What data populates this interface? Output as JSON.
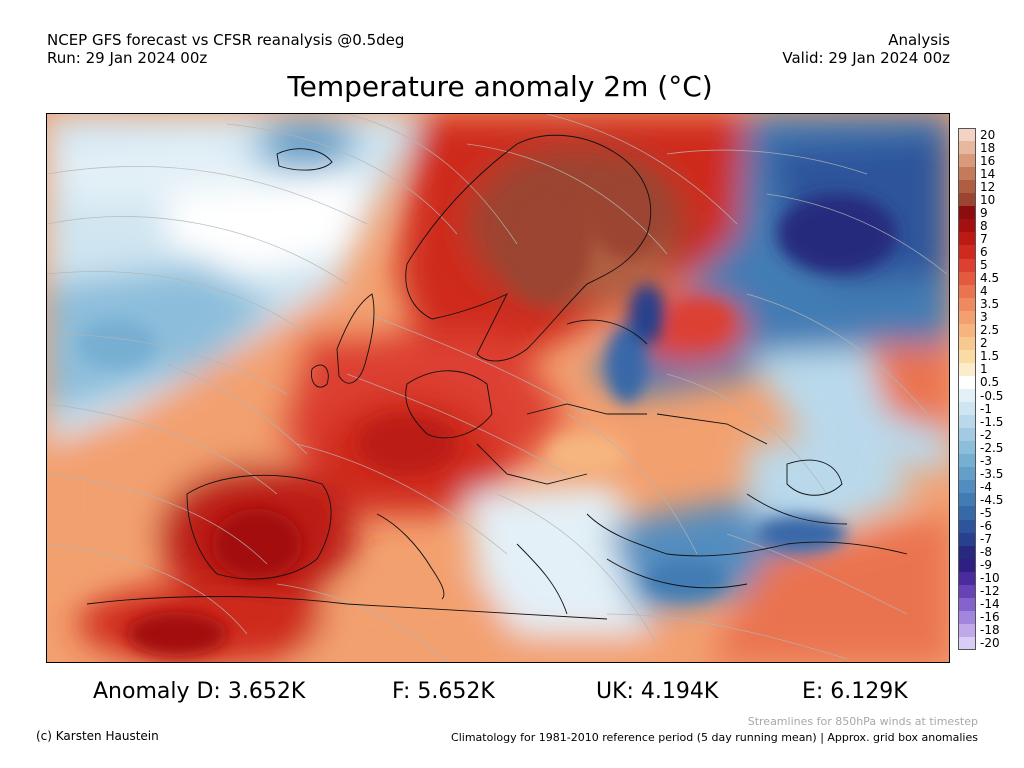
{
  "header": {
    "source_line": "NCEP GFS forecast vs CFSR reanalysis @0.5deg",
    "run_line": "Run: 29 Jan 2024 00z",
    "type_line": "Analysis",
    "valid_line": "Valid: 29 Jan 2024 00z"
  },
  "title": "Temperature anomaly 2m (°C)",
  "colorbar": {
    "labels": [
      "20",
      "18",
      "16",
      "14",
      "12",
      "10",
      "9",
      "8",
      "7",
      "6",
      "5",
      "4.5",
      "4",
      "3.5",
      "3",
      "2.5",
      "2",
      "1.5",
      "1",
      "0.5",
      "-0.5",
      "-1",
      "-1.5",
      "-2",
      "-2.5",
      "-3",
      "-3.5",
      "-4",
      "-4.5",
      "-5",
      "-6",
      "-7",
      "-8",
      "-9",
      "-10",
      "-12",
      "-14",
      "-16",
      "-18",
      "-20"
    ],
    "colors": [
      "#f3d3c4",
      "#e8b89e",
      "#d89a7b",
      "#c47b5c",
      "#b05e43",
      "#9b4430",
      "#8c0d0d",
      "#a3100f",
      "#bb1a15",
      "#cf2a1e",
      "#dd4030",
      "#e45a3e",
      "#ea7350",
      "#ef8a60",
      "#f3a06f",
      "#f6b57f",
      "#f8c98f",
      "#f9dba4",
      "#fbeccb",
      "#ffffff",
      "#e3f0f7",
      "#cfe5f1",
      "#b9d9eb",
      "#a2cbe3",
      "#8cbedb",
      "#77afd2",
      "#639fc9",
      "#528dbf",
      "#437bb4",
      "#3768a8",
      "#2e549b",
      "#28408d",
      "#26297d",
      "#2f1f82",
      "#4b2c9d",
      "#6644b6",
      "#8463cc",
      "#a285dc",
      "#c0a8ea",
      "#dacdf5"
    ]
  },
  "stats": {
    "d": "Anomaly D: 3.652K",
    "f": "F: 5.652K",
    "uk": "UK: 4.194K",
    "e": "E: 6.129K"
  },
  "footer": {
    "copyright": "(c) Karsten Haustein",
    "streamline_note": "Streamlines for 850hPa winds at timestep",
    "climatology_note": "Climatology for 1981-2010 reference period (5 day running mean) | Approx. grid box anomalies"
  }
}
